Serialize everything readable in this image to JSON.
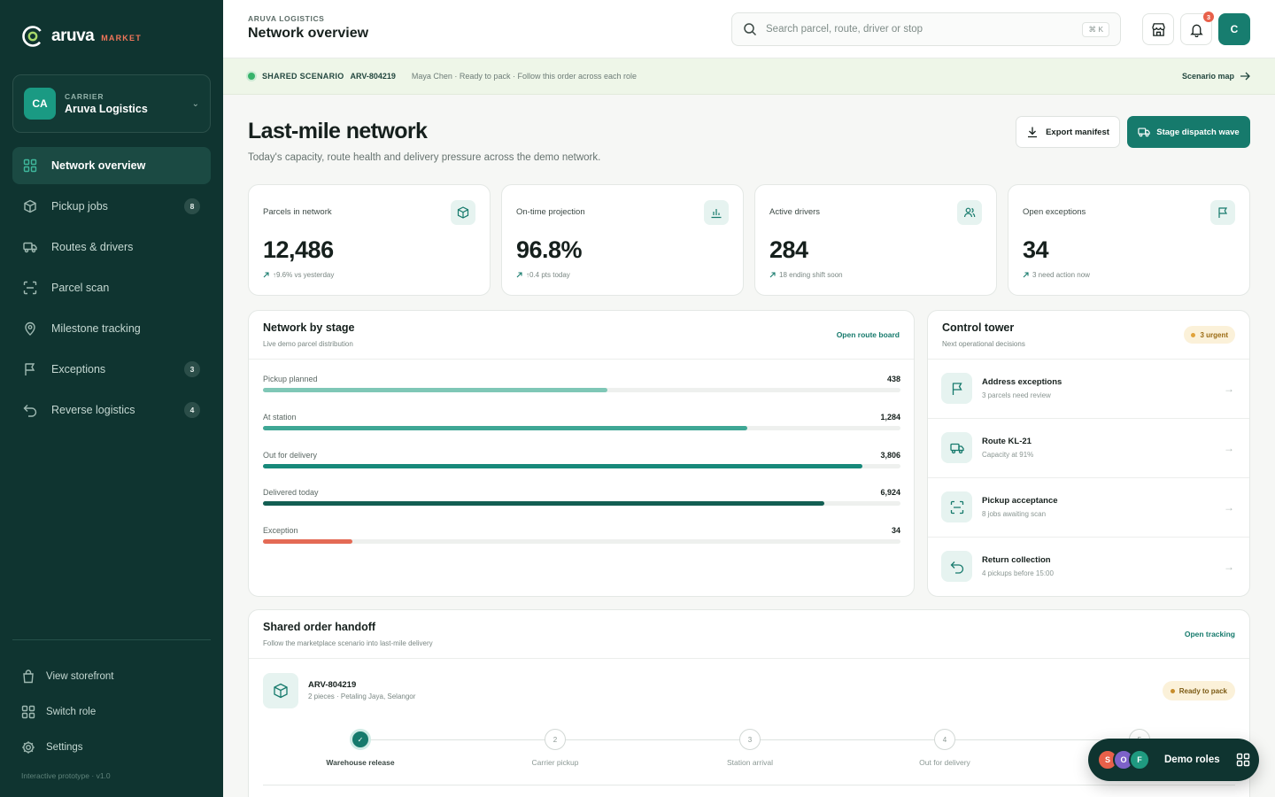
{
  "brand": {
    "name": "aruva",
    "suffix": "MARKET"
  },
  "org": {
    "role": "CARRIER",
    "name": "Aruva Logistics",
    "initials": "CA"
  },
  "nav": [
    {
      "label": "Network overview",
      "icon": "grid-icon",
      "badge": ""
    },
    {
      "label": "Pickup jobs",
      "icon": "package-icon",
      "badge": "8"
    },
    {
      "label": "Routes & drivers",
      "icon": "truck-icon",
      "badge": ""
    },
    {
      "label": "Parcel scan",
      "icon": "scan-icon",
      "badge": ""
    },
    {
      "label": "Milestone tracking",
      "icon": "pin-icon",
      "badge": ""
    },
    {
      "label": "Exceptions",
      "icon": "flag-icon",
      "badge": "3"
    },
    {
      "label": "Reverse logistics",
      "icon": "undo-icon",
      "badge": "4"
    }
  ],
  "sidebar_bottom": [
    {
      "label": "View storefront",
      "icon": "bag-icon"
    },
    {
      "label": "Switch role",
      "icon": "grid-icon"
    },
    {
      "label": "Settings",
      "icon": "gear-icon"
    }
  ],
  "version": "Interactive prototype · v1.0",
  "topbar": {
    "eyebrow": "ARUVA LOGISTICS",
    "title": "Network overview",
    "search_placeholder": "Search parcel, route, driver or stop",
    "shortcut": "⌘ K",
    "notifications": "3",
    "user_initial": "C"
  },
  "banner": {
    "tag": "SHARED SCENARIO",
    "order_id": "ARV-804219",
    "text": "Maya Chen · Ready to pack · Follow this order across each role",
    "link": "Scenario map"
  },
  "page": {
    "title": "Last-mile network",
    "subtitle": "Today's capacity, route health and delivery pressure across the demo network.",
    "export_label": "Export manifest",
    "stage_label": "Stage dispatch wave"
  },
  "kpis": [
    {
      "label": "Parcels in network",
      "value": "12,486",
      "delta": "↑9.6% vs yesterday",
      "icon": "box-icon"
    },
    {
      "label": "On-time projection",
      "value": "96.8%",
      "delta": "↑0.4 pts today",
      "icon": "bar-chart-icon"
    },
    {
      "label": "Active drivers",
      "value": "284",
      "delta": "18 ending shift soon",
      "icon": "users-icon"
    },
    {
      "label": "Open exceptions",
      "value": "34",
      "delta": "3 need action now",
      "icon": "flag-icon"
    }
  ],
  "network": {
    "title": "Network by stage",
    "subtitle": "Live demo parcel distribution",
    "link": "Open route board",
    "stages": [
      {
        "name": "Pickup planned",
        "value": "438",
        "fill": 0.54,
        "color": "#7fc7b6"
      },
      {
        "name": "At station",
        "value": "1,284",
        "fill": 0.76,
        "color": "#3fa795"
      },
      {
        "name": "Out for delivery",
        "value": "3,806",
        "fill": 0.94,
        "color": "#17897a"
      },
      {
        "name": "Delivered today",
        "value": "6,924",
        "fill": 0.88,
        "color": "#125e52"
      },
      {
        "name": "Exception",
        "value": "34",
        "fill": 0.14,
        "color": "#e46a55"
      }
    ]
  },
  "control_tower": {
    "title": "Control tower",
    "subtitle": "Next operational decisions",
    "badge": "3 urgent",
    "items": [
      {
        "title": "Address exceptions",
        "sub": "3 parcels need review",
        "icon": "flag-icon"
      },
      {
        "title": "Route KL-21",
        "sub": "Capacity at 91%",
        "icon": "truck-icon"
      },
      {
        "title": "Pickup acceptance",
        "sub": "8 jobs awaiting scan",
        "icon": "scan-icon"
      },
      {
        "title": "Return collection",
        "sub": "4 pickups before 15:00",
        "icon": "undo-icon"
      }
    ]
  },
  "handoff": {
    "title": "Shared order handoff",
    "subtitle": "Follow the marketplace scenario into last-mile delivery",
    "link": "Open tracking",
    "order_id": "ARV-804219",
    "order_meta": "2 pieces · Petaling Jaya, Selangor",
    "status": "Ready to pack",
    "steps": [
      {
        "num": "✓",
        "label": "Warehouse release",
        "done": true
      },
      {
        "num": "2",
        "label": "Carrier pickup",
        "done": false
      },
      {
        "num": "3",
        "label": "Station arrival",
        "done": false
      },
      {
        "num": "4",
        "label": "Out for delivery",
        "done": false
      },
      {
        "num": "5",
        "label": "",
        "done": false
      }
    ]
  },
  "demo": {
    "label": "Demo roles",
    "avatars": [
      {
        "letter": "S",
        "color": "#e8604a"
      },
      {
        "letter": "O",
        "color": "#7d62c9"
      },
      {
        "letter": "F",
        "color": "#1f9a80"
      }
    ]
  }
}
